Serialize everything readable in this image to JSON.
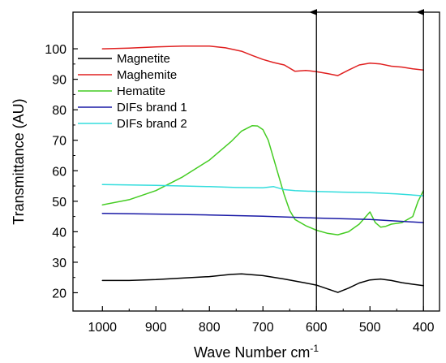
{
  "chart_data": {
    "type": "line",
    "title": "",
    "xlabel": "Wave Number cm",
    "xlabel_superscript": "-1",
    "ylabel": "Transmittance (AU)",
    "x_reversed": true,
    "xlim": [
      1055,
      370
    ],
    "ylim": [
      14,
      112
    ],
    "x_ticks": [
      1000,
      900,
      800,
      700,
      600,
      500,
      400
    ],
    "x_tick_labels": [
      "1000",
      "900",
      "800",
      "700",
      "600",
      "500",
      "400"
    ],
    "y_ticks": [
      20,
      30,
      40,
      50,
      60,
      70,
      80,
      90,
      100
    ],
    "y_tick_labels": [
      "20",
      "30",
      "40",
      "50",
      "60",
      "70",
      "80",
      "90",
      "100"
    ],
    "legend_position": "top-left",
    "grid": false,
    "annotations": [
      {
        "type": "vertical-arrow",
        "x": 600,
        "y_from": 14,
        "y_to": 112
      },
      {
        "type": "vertical-arrow",
        "x": 400,
        "y_from": 14,
        "y_to": 112
      }
    ],
    "series": [
      {
        "name": "Magnetite",
        "color": "#000000",
        "x": [
          1000,
          950,
          900,
          850,
          800,
          760,
          740,
          700,
          660,
          620,
          600,
          580,
          560,
          540,
          520,
          500,
          480,
          460,
          440,
          420,
          400
        ],
        "y": [
          24,
          24,
          24.3,
          24.8,
          25.3,
          26,
          26.2,
          25.6,
          24.5,
          23.2,
          22.5,
          21.3,
          20.1,
          21.5,
          23.2,
          24.2,
          24.5,
          24,
          23.3,
          22.8,
          22.3
        ]
      },
      {
        "name": "Maghemite",
        "color": "#e02020",
        "x": [
          1000,
          950,
          900,
          850,
          800,
          770,
          740,
          720,
          700,
          680,
          660,
          640,
          620,
          600,
          580,
          560,
          540,
          520,
          500,
          480,
          460,
          440,
          420,
          400
        ],
        "y": [
          100,
          100.2,
          100.6,
          100.9,
          100.9,
          100.3,
          99.2,
          97.8,
          96.5,
          95.5,
          94.7,
          92.6,
          92.9,
          92.5,
          91.9,
          91.2,
          93.0,
          94.7,
          95.3,
          95.0,
          94.3,
          94.0,
          93.4,
          93.0
        ]
      },
      {
        "name": "Hematite",
        "color": "#44cc22",
        "x": [
          1000,
          950,
          900,
          850,
          800,
          760,
          740,
          720,
          710,
          700,
          690,
          680,
          670,
          660,
          650,
          640,
          620,
          600,
          580,
          560,
          540,
          520,
          510,
          500,
          490,
          480,
          470,
          460,
          440,
          420,
          410,
          400
        ],
        "y": [
          48.8,
          50.5,
          53.5,
          58,
          63.5,
          69.5,
          73,
          74.8,
          74.7,
          73.5,
          70,
          64,
          58,
          52,
          47,
          44,
          42,
          40.5,
          39.5,
          39,
          40,
          42.5,
          44.5,
          46.5,
          43,
          41.5,
          41.8,
          42.5,
          43,
          45,
          50,
          53.5
        ]
      },
      {
        "name": "DIFs brand 1",
        "color": "#1a1aa6",
        "x": [
          1000,
          900,
          800,
          700,
          600,
          500,
          400
        ],
        "y": [
          46,
          45.8,
          45.5,
          45.1,
          44.5,
          44,
          43
        ]
      },
      {
        "name": "DIFs brand 2",
        "color": "#33dddd",
        "x": [
          1000,
          900,
          800,
          750,
          700,
          680,
          670,
          660,
          640,
          600,
          550,
          500,
          450,
          400
        ],
        "y": [
          55.5,
          55.2,
          54.8,
          54.5,
          54.4,
          54.8,
          54.3,
          53.8,
          53.5,
          53.2,
          53,
          52.8,
          52.4,
          51.8
        ]
      }
    ]
  }
}
